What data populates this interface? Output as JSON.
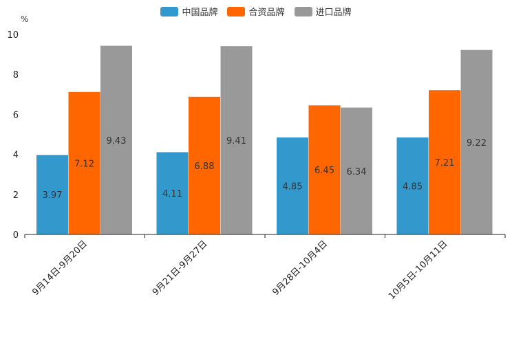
{
  "chart_data": {
    "type": "bar",
    "unit_label": "%",
    "categories": [
      "9月14日-9月20日",
      "9月21日-9月27日",
      "9月28日-10月4日",
      "10月5日-10月11日"
    ],
    "series": [
      {
        "name": "中国品牌",
        "color": "#3399cc",
        "values": [
          3.97,
          4.11,
          4.85,
          4.85
        ],
        "labels": [
          "3.97",
          "4.11",
          "4.85",
          "4.85"
        ]
      },
      {
        "name": "合资品牌",
        "color": "#ff6600",
        "values": [
          7.12,
          6.88,
          6.45,
          7.21
        ],
        "labels": [
          "7.12",
          "6.88",
          "6.45",
          "7.21"
        ]
      },
      {
        "name": "进口品牌",
        "color": "#999999",
        "values": [
          9.43,
          9.41,
          6.34,
          9.22
        ],
        "labels": [
          "9.43",
          "9.41",
          "6.34",
          "9.22"
        ]
      }
    ],
    "ylim": [
      0,
      10
    ],
    "yticks": [
      0,
      2,
      4,
      6,
      8,
      10
    ],
    "ytick_labels": [
      "0",
      "2",
      "4",
      "6",
      "8",
      "10"
    ],
    "legend_position": "top-center",
    "grid": false
  }
}
